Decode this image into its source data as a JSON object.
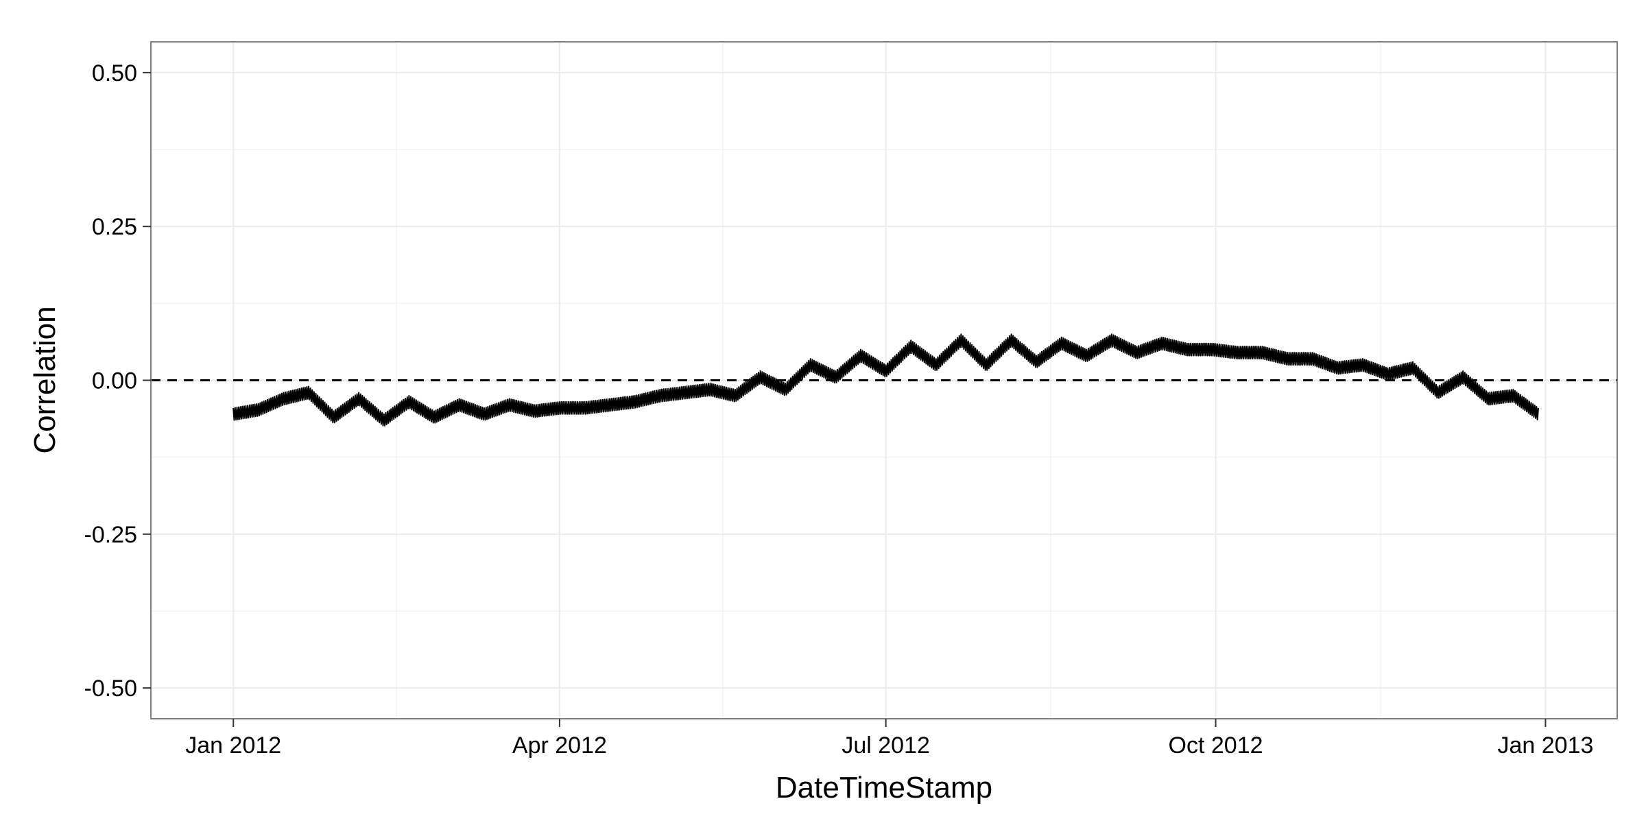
{
  "chart_data": {
    "type": "line",
    "title": "",
    "xlabel": "DateTimeStamp",
    "ylabel": "Correlation",
    "xlim": [
      "2011-12-09",
      "2013-01-21"
    ],
    "ylim": [
      -0.55,
      0.55
    ],
    "x_ticks": [
      {
        "value": "2012-01-01",
        "label": "Jan 2012"
      },
      {
        "value": "2012-04-01",
        "label": "Apr 2012"
      },
      {
        "value": "2012-07-01",
        "label": "Jul 2012"
      },
      {
        "value": "2012-10-01",
        "label": "Oct 2012"
      },
      {
        "value": "2013-01-01",
        "label": "Jan 2013"
      }
    ],
    "y_ticks": [
      {
        "value": 0.5,
        "label": "0.50"
      },
      {
        "value": 0.25,
        "label": "0.25"
      },
      {
        "value": 0.0,
        "label": "0.00"
      },
      {
        "value": -0.25,
        "label": "-0.25"
      },
      {
        "value": -0.5,
        "label": "-0.50"
      }
    ],
    "y_minor_ticks": [
      0.375,
      0.125,
      -0.125,
      -0.375
    ],
    "reference_line": {
      "y": 0.0,
      "style": "dashed",
      "color": "#000000"
    },
    "grid": true,
    "legend": "none",
    "series": [
      {
        "color": "#000000",
        "x": [
          "2012-01-01",
          "2012-01-08",
          "2012-01-15",
          "2012-01-22",
          "2012-01-29",
          "2012-02-05",
          "2012-02-12",
          "2012-02-19",
          "2012-02-26",
          "2012-03-04",
          "2012-03-11",
          "2012-03-18",
          "2012-03-25",
          "2012-04-01",
          "2012-04-08",
          "2012-04-15",
          "2012-04-22",
          "2012-04-29",
          "2012-05-06",
          "2012-05-13",
          "2012-05-20",
          "2012-05-27",
          "2012-06-03",
          "2012-06-10",
          "2012-06-17",
          "2012-06-24",
          "2012-07-01",
          "2012-07-08",
          "2012-07-15",
          "2012-07-22",
          "2012-07-29",
          "2012-08-05",
          "2012-08-12",
          "2012-08-19",
          "2012-08-26",
          "2012-09-02",
          "2012-09-09",
          "2012-09-16",
          "2012-09-23",
          "2012-09-30",
          "2012-10-07",
          "2012-10-14",
          "2012-10-21",
          "2012-10-28",
          "2012-11-04",
          "2012-11-11",
          "2012-11-18",
          "2012-11-25",
          "2012-12-02",
          "2012-12-09",
          "2012-12-16",
          "2012-12-23",
          "2012-12-30"
        ],
        "y": [
          -0.055,
          -0.048,
          -0.03,
          -0.02,
          -0.06,
          -0.03,
          -0.065,
          -0.035,
          -0.06,
          -0.04,
          -0.055,
          -0.04,
          -0.05,
          -0.045,
          -0.045,
          -0.04,
          -0.035,
          -0.025,
          -0.02,
          -0.015,
          -0.025,
          0.005,
          -0.015,
          0.025,
          0.005,
          0.04,
          0.015,
          0.055,
          0.025,
          0.065,
          0.025,
          0.065,
          0.03,
          0.06,
          0.04,
          0.065,
          0.045,
          0.06,
          0.05,
          0.05,
          0.045,
          0.045,
          0.035,
          0.035,
          0.02,
          0.025,
          0.01,
          0.02,
          -0.02,
          0.005,
          -0.03,
          -0.025,
          -0.055
        ],
        "band": 0.02
      }
    ]
  }
}
